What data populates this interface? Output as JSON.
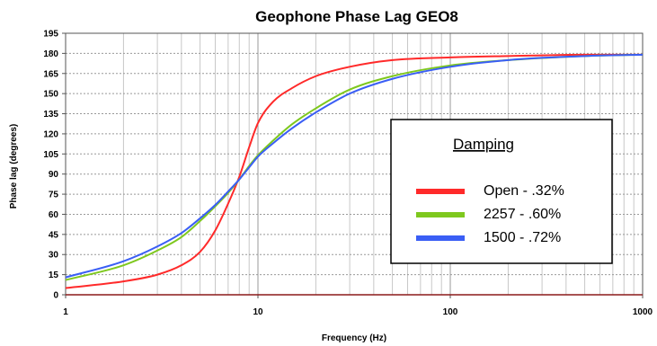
{
  "chart_data": {
    "type": "line",
    "title": "Geophone Phase Lag GEO8",
    "xlabel": "Frequency (Hz)",
    "ylabel": "Phase lag (degrees)",
    "x_scale": "log",
    "xlim": [
      1,
      1000
    ],
    "ylim": [
      0,
      195
    ],
    "x_ticks": [
      "1",
      "10",
      "100",
      "1000"
    ],
    "y_ticks": [
      "0",
      "15",
      "30",
      "45",
      "60",
      "75",
      "90",
      "105",
      "120",
      "135",
      "150",
      "165",
      "180",
      "195"
    ],
    "grid": true,
    "legend": {
      "title": "Damping",
      "placement": "center-right"
    },
    "series": [
      {
        "name": "Open - .32%",
        "color": "#ff2a2a",
        "x": [
          1,
          2,
          3,
          4,
          5,
          6,
          7,
          8,
          9,
          10,
          12,
          15,
          20,
          30,
          50,
          100,
          200,
          500,
          1000
        ],
        "y": [
          5,
          10,
          15,
          22,
          32,
          48,
          68,
          88,
          110,
          128,
          144,
          154,
          163,
          170,
          175,
          177,
          178,
          179,
          179
        ]
      },
      {
        "name": "2257  - .60%",
        "color": "#7ec81e",
        "x": [
          1,
          2,
          3,
          4,
          5,
          6,
          7,
          8,
          9,
          10,
          12,
          15,
          20,
          30,
          50,
          100,
          200,
          500,
          1000
        ],
        "y": [
          11,
          22,
          33,
          43,
          55,
          66,
          76,
          86,
          96,
          104,
          115,
          127,
          139,
          153,
          163,
          171,
          175,
          178,
          179
        ]
      },
      {
        "name": "1500  - .72%",
        "color": "#3a5ef5",
        "x": [
          1,
          2,
          3,
          4,
          5,
          6,
          7,
          8,
          9,
          10,
          12,
          15,
          20,
          30,
          50,
          100,
          200,
          500,
          1000
        ],
        "y": [
          13,
          25,
          36,
          46,
          57,
          67,
          77,
          86,
          95,
          103,
          113,
          124,
          136,
          150,
          161,
          170,
          175,
          178,
          179
        ]
      }
    ]
  }
}
